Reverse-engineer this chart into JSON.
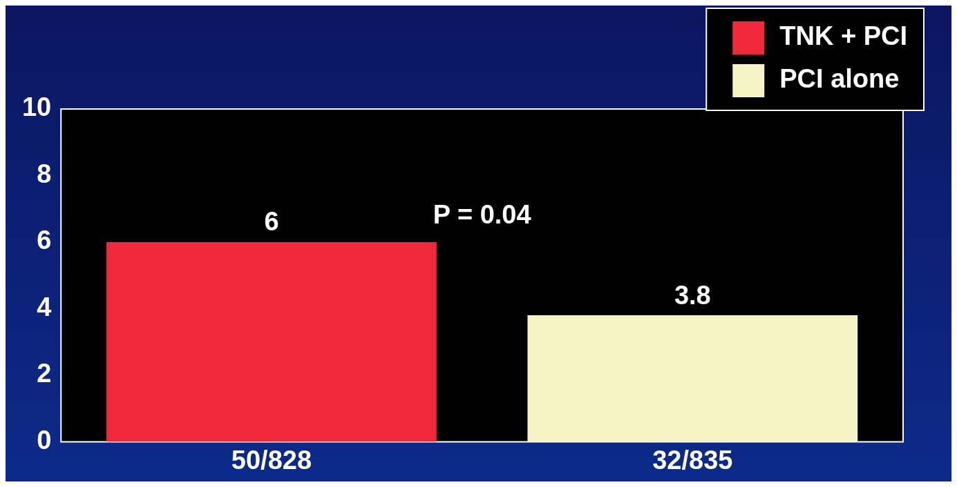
{
  "chart_data": {
    "type": "bar",
    "categories": [
      "50/828",
      "32/835"
    ],
    "series": [
      {
        "name": "TNK + PCI",
        "color": "#f0283a",
        "values": [
          6,
          null
        ]
      },
      {
        "name": "PCI alone",
        "color": "#f6f4c2",
        "values": [
          null,
          3.8
        ]
      }
    ],
    "ylim": [
      0,
      10
    ],
    "yticks": [
      0,
      2,
      4,
      6,
      8,
      10
    ],
    "grid": false,
    "legend": "top right",
    "data_labels": true,
    "annotations": [
      "P = 0.04"
    ]
  }
}
